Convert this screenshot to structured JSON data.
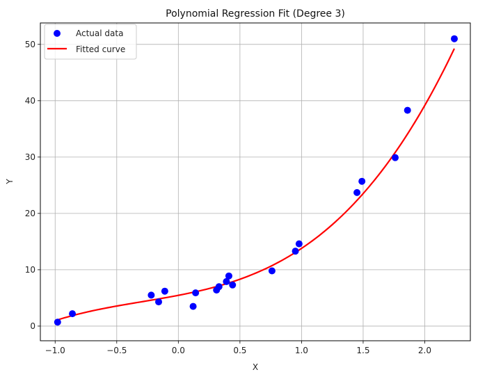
{
  "chart_data": {
    "type": "scatter",
    "title": "Polynomial Regression Fit (Degree 3)",
    "xlabel": "X",
    "ylabel": "Y",
    "xlim": [
      -1.12,
      2.37
    ],
    "ylim": [
      -2.6,
      53.8
    ],
    "xticks": [
      -1.0,
      -0.5,
      0.0,
      0.5,
      1.0,
      1.5,
      2.0
    ],
    "xtick_labels": [
      "−1.0",
      "−0.5",
      "0.0",
      "0.5",
      "1.0",
      "1.5",
      "2.0"
    ],
    "yticks": [
      0,
      10,
      20,
      30,
      40,
      50
    ],
    "ytick_labels": [
      "0",
      "10",
      "20",
      "30",
      "40",
      "50"
    ],
    "grid": true,
    "legend": {
      "position": "top-left",
      "entries": [
        "Actual data",
        "Fitted curve"
      ]
    },
    "series": [
      {
        "name": "Actual data",
        "kind": "scatter",
        "color": "#0000ff",
        "points": [
          [
            -0.98,
            0.7
          ],
          [
            -0.86,
            2.2
          ],
          [
            -0.22,
            5.5
          ],
          [
            -0.16,
            4.3
          ],
          [
            -0.11,
            6.2
          ],
          [
            0.12,
            3.5
          ],
          [
            0.14,
            5.9
          ],
          [
            0.31,
            6.4
          ],
          [
            0.33,
            7.0
          ],
          [
            0.39,
            7.9
          ],
          [
            0.41,
            8.9
          ],
          [
            0.44,
            7.3
          ],
          [
            0.76,
            9.8
          ],
          [
            0.95,
            13.3
          ],
          [
            0.98,
            14.6
          ],
          [
            1.45,
            23.7
          ],
          [
            1.49,
            25.7
          ],
          [
            1.76,
            29.9
          ],
          [
            1.86,
            38.3
          ],
          [
            2.24,
            51.0
          ]
        ]
      },
      {
        "name": "Fitted curve",
        "kind": "line",
        "color": "#ff0000",
        "x_range": [
          -0.98,
          2.24
        ],
        "coefficients": [
          5.46,
          4.21,
          1.92,
          2.2
        ]
      }
    ]
  }
}
